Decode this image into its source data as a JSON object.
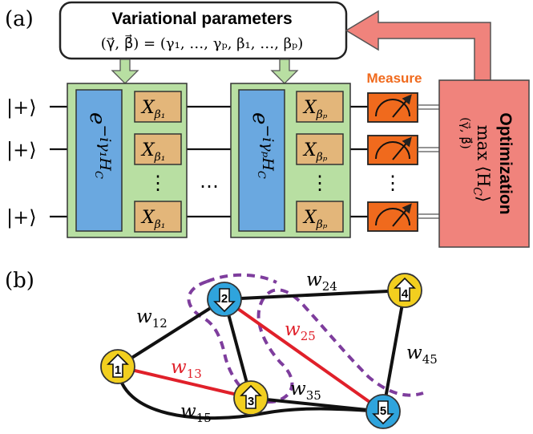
{
  "panel_a": {
    "label": "(a)",
    "params_title": "Variational parameters",
    "params_eq": "(γ⃗, β⃗) = (γ₁, …, γₚ, β₁, …, βₚ)",
    "kets": [
      "|+⟩",
      "|+⟩",
      "|+⟩"
    ],
    "cost_unitary_1": "e^{−iγ₁H_C}",
    "cost_unitary_1_base": "e",
    "cost_unitary_1_exp": "−iγ₁H",
    "cost_unitary_1_sub": "C",
    "cost_unitary_p_base": "e",
    "cost_unitary_p_exp": "−iγₚH",
    "cost_unitary_p_sub": "C",
    "mixer_1_base": "X",
    "mixer_1_sub": "β₁",
    "mixer_p_base": "X",
    "mixer_p_sub": "βₚ",
    "vdots": "⋮",
    "hdots": "⋯",
    "measure_label": "Measure",
    "optimization_title": "Optimization",
    "optimization_max": "max",
    "optimization_expr": "⟨H",
    "optimization_expr_sub": "C",
    "optimization_expr_close": "⟩",
    "optimization_arg": "(γ⃗, β⃗)"
  },
  "panel_b": {
    "label": "(b)",
    "nodes": [
      {
        "id": "1",
        "spin": "up",
        "color": "#f2cf1f"
      },
      {
        "id": "2",
        "spin": "down",
        "color": "#2fa4dd"
      },
      {
        "id": "3",
        "spin": "up",
        "color": "#f2cf1f"
      },
      {
        "id": "4",
        "spin": "up",
        "color": "#f2cf1f"
      },
      {
        "id": "5",
        "spin": "down",
        "color": "#2fa4dd"
      }
    ],
    "edges": [
      {
        "label_base": "w",
        "label_sub": "12",
        "cut": false
      },
      {
        "label_base": "w",
        "label_sub": "24",
        "cut": false
      },
      {
        "label_base": "w",
        "label_sub": "25",
        "cut": true
      },
      {
        "label_base": "w",
        "label_sub": "13",
        "cut": true
      },
      {
        "label_base": "w",
        "label_sub": "35",
        "cut": false
      },
      {
        "label_base": "w",
        "label_sub": "15",
        "cut": false
      },
      {
        "label_base": "w",
        "label_sub": "45",
        "cut": false
      }
    ]
  },
  "colors": {
    "green_box": "#b8dfa2",
    "blue_unitary": "#6aa8e0",
    "tan_mixer": "#e3b67a",
    "measure_orange": "#f06a1d",
    "optimization_pink": "#f0837c",
    "cut_edge_red": "#e0202a",
    "cut_line_purple": "#7e3d9d"
  }
}
